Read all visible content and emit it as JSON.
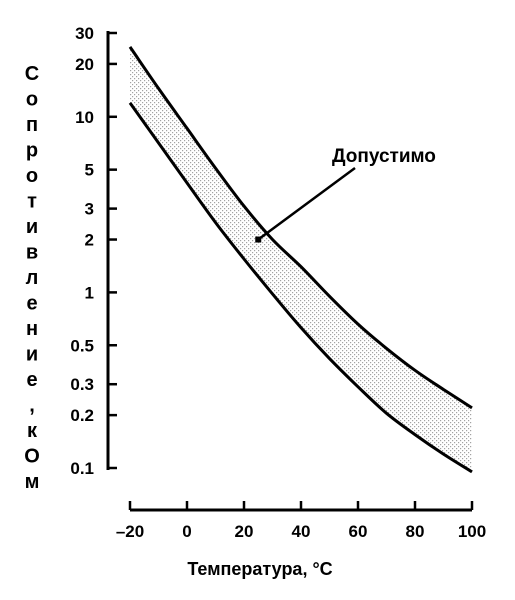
{
  "chart_data": {
    "type": "area",
    "title": "",
    "xlabel": "Температура, °С",
    "ylabel": "Сопротивление, кОм",
    "x_scale": "linear",
    "y_scale": "log",
    "xlim": [
      -20,
      100
    ],
    "ylim": [
      0.1,
      30
    ],
    "x_ticks": [
      -20,
      0,
      20,
      40,
      60,
      80,
      100
    ],
    "y_ticks": [
      0.1,
      0.2,
      0.3,
      0.5,
      1,
      2,
      3,
      5,
      10,
      20,
      30
    ],
    "grid": false,
    "series": [
      {
        "x": [
          -20,
          -10,
          0,
          10,
          20,
          30,
          40,
          50,
          60,
          70,
          80,
          90,
          100
        ],
        "values": [
          25,
          14.5,
          8.6,
          5.1,
          3.1,
          2.0,
          1.4,
          0.95,
          0.66,
          0.48,
          0.36,
          0.28,
          0.22
        ]
      },
      {
        "x": [
          -20,
          -10,
          0,
          10,
          20,
          30,
          40,
          50,
          60,
          70,
          80,
          90,
          100
        ],
        "values": [
          12,
          7.1,
          4.2,
          2.5,
          1.55,
          0.98,
          0.63,
          0.42,
          0.29,
          0.205,
          0.155,
          0.12,
          0.095
        ]
      }
    ],
    "annotations": [
      {
        "text": "Допустимо",
        "points_to": {
          "x": 25,
          "y": 2.0
        }
      }
    ]
  }
}
